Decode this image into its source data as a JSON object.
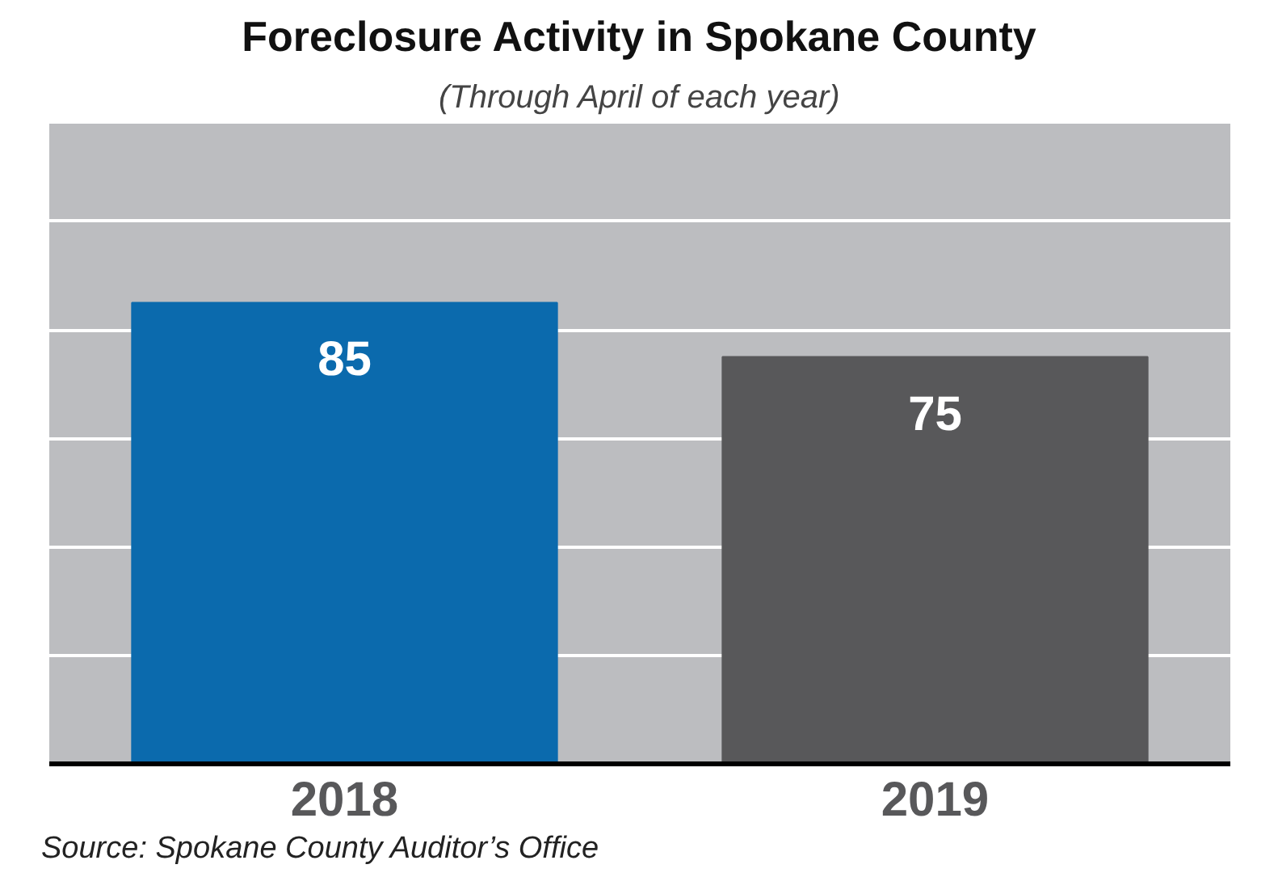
{
  "chart_data": {
    "type": "bar",
    "title": "Foreclosure Activity in Spokane County",
    "subtitle": "(Through April of each year)",
    "categories": [
      "2018",
      "2019"
    ],
    "values": [
      85,
      75
    ],
    "colors": [
      "#0b6aad",
      "#58585a"
    ],
    "data_labels": true,
    "ylim": [
      0,
      118
    ],
    "yticks": [
      {
        "value": 20,
        "label": null
      },
      {
        "value": 40,
        "label": null
      },
      {
        "value": 60,
        "label": null
      },
      {
        "value": 80,
        "label": null
      },
      {
        "value": 100,
        "label": null
      }
    ],
    "grid": "y",
    "tick_labels": "x",
    "annotations": [
      "Source: Spokane County Auditor’s Office"
    ]
  }
}
